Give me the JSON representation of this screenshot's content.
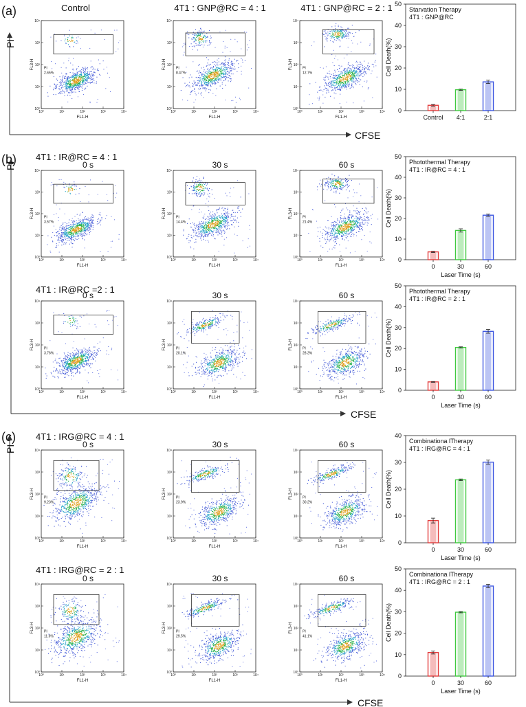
{
  "panels": {
    "a": "(a)",
    "b": "(b)",
    "c": "(c)"
  },
  "axes": {
    "y_arrow": "PI",
    "x_arrow": "CFSE"
  },
  "group_titles": {
    "b1": "4T1 : IR@RC = 4 : 1",
    "b2": "4T1 : IR@RC =2 : 1",
    "c1": "4T1 : IRG@RC = 4 : 1",
    "c2": "4T1 : IRG@RC = 2 : 1"
  },
  "flow_axis": {
    "xlabel": "FL1-H",
    "ylabel": "FL3-H",
    "gate": "PI",
    "ticks": [
      "10⁰",
      "10¹",
      "10²",
      "10³",
      "10⁴"
    ]
  },
  "flow_rows": [
    {
      "id": "a",
      "plots": [
        {
          "title": "Control",
          "pct": "2.65%",
          "dist": "control"
        },
        {
          "title": "4T1 : GNP@RC = 4 : 1",
          "pct": "8.47%",
          "dist": "gnp4"
        },
        {
          "title": "4T1 : GNP@RC = 2 : 1",
          "pct": "12.7%",
          "dist": "gnp2"
        }
      ]
    },
    {
      "id": "b1",
      "plots": [
        {
          "title": "0 s",
          "pct": "3.57%",
          "dist": "control"
        },
        {
          "title": "30 s",
          "pct": "14.4%",
          "dist": "gnp4"
        },
        {
          "title": "60 s",
          "pct": "21.4%",
          "dist": "gnp2"
        }
      ]
    },
    {
      "id": "b2",
      "plots": [
        {
          "title": "0 s",
          "pct": "3.76%",
          "dist": "control"
        },
        {
          "title": "30 s",
          "pct": "20.1%",
          "dist": "streak"
        },
        {
          "title": "60 s",
          "pct": "28.3%",
          "dist": "streak"
        }
      ]
    },
    {
      "id": "c1",
      "plots": [
        {
          "title": "0 s",
          "pct": "9.23%",
          "dist": "c0"
        },
        {
          "title": "30 s",
          "pct": "23.9%",
          "dist": "streak"
        },
        {
          "title": "60 s",
          "pct": "30.2%",
          "dist": "streak"
        }
      ]
    },
    {
      "id": "c2",
      "plots": [
        {
          "title": "0 s",
          "pct": "11.6%",
          "dist": "c0"
        },
        {
          "title": "30 s",
          "pct": "29.5%",
          "dist": "streak"
        },
        {
          "title": "60 s",
          "pct": "41.1%",
          "dist": "streak"
        }
      ]
    }
  ],
  "chart_data": [
    {
      "type": "bar",
      "title": "Starvation Therapy",
      "subtitle": "4T1 : GNP@RC",
      "categories": [
        "Control",
        "4:1",
        "2:1"
      ],
      "values": [
        2.5,
        9.8,
        13.5
      ],
      "errors": [
        0.4,
        0.3,
        0.8
      ],
      "xlabel": "",
      "ylabel": "Cell Death(%)",
      "ylim": [
        0,
        50
      ],
      "yticks": [
        0,
        10,
        20,
        30,
        40,
        50
      ],
      "colors": [
        "#e23b3b",
        "#3ec93e",
        "#3b55e0"
      ]
    },
    {
      "type": "bar",
      "title": "Photothermal Therapy",
      "subtitle": "4T1 : IR@RC = 4 : 1",
      "categories": [
        "0",
        "30",
        "60"
      ],
      "values": [
        3.8,
        14.2,
        21.6
      ],
      "errors": [
        0.3,
        0.8,
        0.6
      ],
      "xlabel": "Laser Time (s)",
      "ylabel": "Cell Death(%)",
      "ylim": [
        0,
        50
      ],
      "yticks": [
        0,
        10,
        20,
        30,
        40,
        50
      ],
      "colors": [
        "#e23b3b",
        "#3ec93e",
        "#3b55e0"
      ]
    },
    {
      "type": "bar",
      "title": "Photothermal Therapy",
      "subtitle": "4T1 : IR@RC = 2 : 1",
      "categories": [
        "0",
        "30",
        "60"
      ],
      "values": [
        4.0,
        20.5,
        28.2
      ],
      "errors": [
        0.2,
        0.3,
        0.9
      ],
      "xlabel": "Laser Time (s)",
      "ylabel": "Cell Death(%)",
      "ylim": [
        0,
        50
      ],
      "yticks": [
        0,
        10,
        20,
        30,
        40,
        50
      ],
      "colors": [
        "#e23b3b",
        "#3ec93e",
        "#3b55e0"
      ]
    },
    {
      "type": "bar",
      "title": "Combinationa lTherapy",
      "subtitle": "4T1 : IRG@RC = 4 : 1",
      "categories": [
        "0",
        "30",
        "60"
      ],
      "values": [
        8.3,
        23.5,
        30.1
      ],
      "errors": [
        0.9,
        0.3,
        0.8
      ],
      "xlabel": "Laser Time (s)",
      "ylabel": "Cell Death(%)",
      "ylim": [
        0,
        40
      ],
      "yticks": [
        0,
        10,
        20,
        30,
        40
      ],
      "colors": [
        "#e23b3b",
        "#3ec93e",
        "#3b55e0"
      ]
    },
    {
      "type": "bar",
      "title": "Combinationa lTherapy",
      "subtitle": "4T1 : IRG@RC = 2 : 1",
      "categories": [
        "0",
        "30",
        "60"
      ],
      "values": [
        11.0,
        29.8,
        42.0
      ],
      "errors": [
        0.7,
        0.3,
        0.8
      ],
      "xlabel": "Laser Time (s)",
      "ylabel": "Cell Death(%)",
      "ylim": [
        0,
        50
      ],
      "yticks": [
        0,
        10,
        20,
        30,
        40,
        50
      ],
      "colors": [
        "#e23b3b",
        "#3ec93e",
        "#3b55e0"
      ]
    }
  ]
}
